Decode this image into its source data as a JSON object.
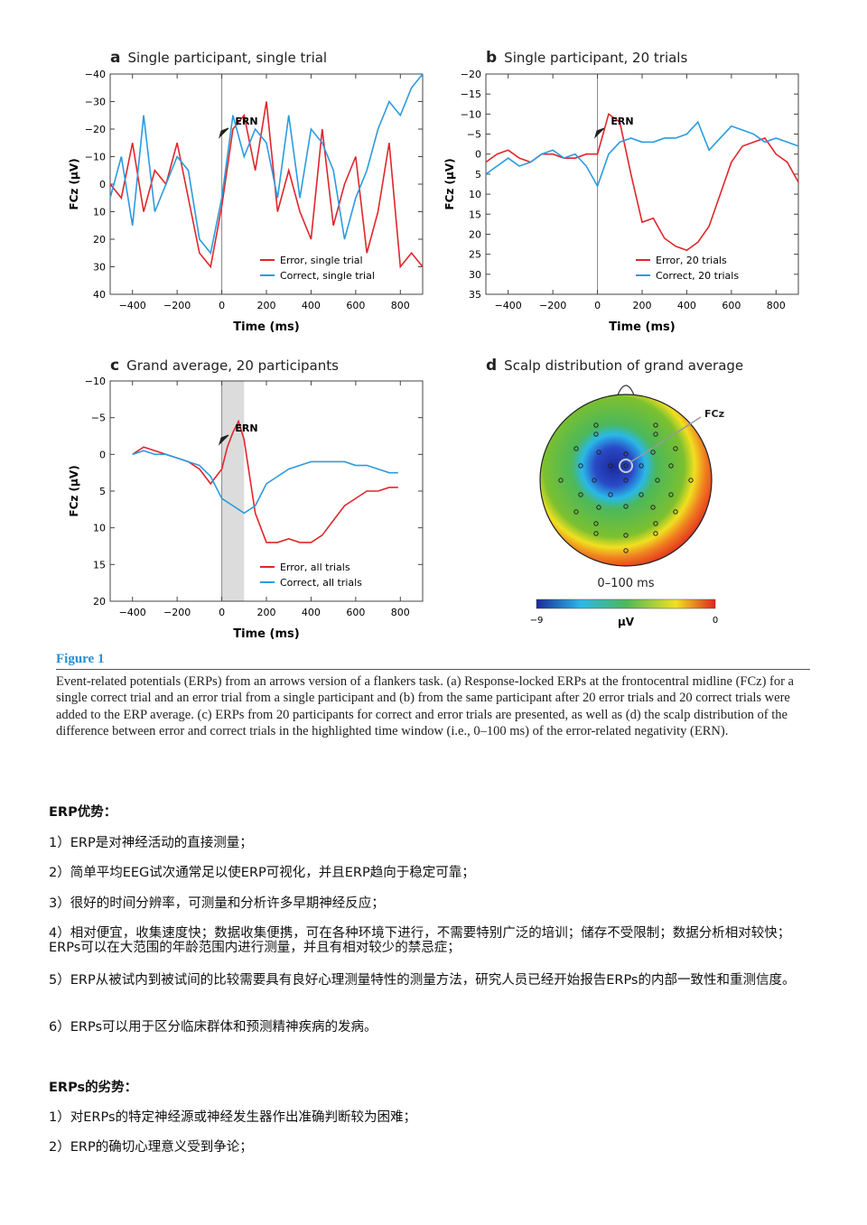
{
  "panels": {
    "a": {
      "letter": "a",
      "title": "Single participant, single trial",
      "ylabel": "FCz (μV)",
      "xlabel": "Time (ms)",
      "annot": "ERN",
      "legend": [
        "Error, single trial",
        "Correct, single trial"
      ]
    },
    "b": {
      "letter": "b",
      "title": "Single participant, 20 trials",
      "ylabel": "FCz (μV)",
      "xlabel": "Time (ms)",
      "annot": "ERN",
      "legend": [
        "Error, 20 trials",
        "Correct, 20 trials"
      ]
    },
    "c": {
      "letter": "c",
      "title": "Grand average, 20 participants",
      "ylabel": "FCz (μV)",
      "xlabel": "Time (ms)",
      "annot": "ERN",
      "legend": [
        "Error, all trials",
        "Correct, all trials"
      ]
    },
    "d": {
      "letter": "d",
      "title": "Scalp distribution of grand average",
      "electrode": "FCz",
      "window": "0–100 ms",
      "cb_min": "−9",
      "cb_max": "0",
      "cb_unit": "μV"
    }
  },
  "colors": {
    "error": "#e0262b",
    "correct": "#2b9be0",
    "highlight": "#dcdcdc",
    "caption_title": "#2a8fd0"
  },
  "chart_data": [
    {
      "type": "line",
      "panel": "a",
      "xlim": [
        -500,
        900
      ],
      "ylim": [
        40,
        -40
      ],
      "xticks": [
        -400,
        -200,
        0,
        200,
        400,
        600,
        800
      ],
      "yticks": [
        -40,
        -30,
        -20,
        -10,
        0,
        10,
        20,
        30,
        40
      ],
      "x": [
        -500,
        -450,
        -400,
        -350,
        -300,
        -250,
        -200,
        -150,
        -100,
        -50,
        0,
        50,
        100,
        150,
        200,
        250,
        300,
        350,
        400,
        450,
        500,
        550,
        600,
        650,
        700,
        750,
        800,
        850,
        900
      ],
      "series": [
        {
          "name": "Error, single trial",
          "values": [
            0,
            5,
            -15,
            10,
            -5,
            0,
            -15,
            5,
            25,
            30,
            8,
            -20,
            -25,
            -5,
            -30,
            10,
            -5,
            10,
            20,
            -20,
            15,
            0,
            -10,
            25,
            10,
            -15,
            30,
            25,
            30
          ]
        },
        {
          "name": "Correct, single trial",
          "values": [
            5,
            -10,
            15,
            -25,
            10,
            0,
            -10,
            -5,
            20,
            25,
            5,
            -25,
            -10,
            -20,
            -15,
            5,
            -25,
            5,
            -20,
            -15,
            -5,
            20,
            5,
            -5,
            -20,
            -30,
            -25,
            -35,
            -40
          ]
        }
      ]
    },
    {
      "type": "line",
      "panel": "b",
      "xlim": [
        -500,
        900
      ],
      "ylim": [
        35,
        -20
      ],
      "xticks": [
        -400,
        -200,
        0,
        200,
        400,
        600,
        800
      ],
      "yticks": [
        -20,
        -15,
        -10,
        -5,
        0,
        5,
        10,
        15,
        20,
        25,
        30,
        35
      ],
      "x": [
        -500,
        -450,
        -400,
        -350,
        -300,
        -250,
        -200,
        -150,
        -100,
        -50,
        0,
        50,
        100,
        150,
        200,
        250,
        300,
        350,
        400,
        450,
        500,
        550,
        600,
        650,
        700,
        750,
        800,
        850,
        900
      ],
      "series": [
        {
          "name": "Error, 20 trials",
          "values": [
            2,
            0,
            -1,
            1,
            2,
            0,
            0,
            1,
            1,
            0,
            0,
            -10,
            -8,
            5,
            17,
            16,
            21,
            23,
            24,
            22,
            18,
            10,
            2,
            -2,
            -3,
            -4,
            0,
            2,
            7
          ]
        },
        {
          "name": "Correct, 20 trials",
          "values": [
            5,
            3,
            1,
            3,
            2,
            0,
            -1,
            1,
            0,
            3,
            8,
            0,
            -3,
            -4,
            -3,
            -3,
            -4,
            -4,
            -5,
            -8,
            -1,
            -4,
            -7,
            -6,
            -5,
            -3,
            -4,
            -3,
            -2
          ]
        }
      ]
    },
    {
      "type": "line",
      "panel": "c",
      "xlim": [
        -500,
        900
      ],
      "ylim": [
        20,
        -10
      ],
      "xticks": [
        -400,
        -200,
        0,
        200,
        400,
        600,
        800
      ],
      "yticks": [
        -10,
        -5,
        0,
        5,
        10,
        15,
        20
      ],
      "highlight": [
        0,
        100
      ],
      "x": [
        -400,
        -350,
        -300,
        -250,
        -200,
        -150,
        -100,
        -50,
        0,
        25,
        50,
        75,
        100,
        150,
        200,
        250,
        300,
        350,
        400,
        450,
        500,
        550,
        600,
        650,
        700,
        750,
        790
      ],
      "series": [
        {
          "name": "Error, all trials",
          "values": [
            0,
            -1,
            -0.5,
            0,
            0.5,
            1,
            2,
            4,
            2,
            -1,
            -3,
            -4.5,
            -2,
            8,
            12,
            12,
            11.5,
            12,
            12,
            11,
            9,
            7,
            6,
            5,
            5,
            4.5,
            4.5
          ]
        },
        {
          "name": "Correct, all trials",
          "values": [
            0,
            -0.5,
            0,
            0,
            0.5,
            1,
            1.5,
            3,
            6,
            6.5,
            7,
            7.5,
            8,
            7,
            4,
            3,
            2,
            1.5,
            1,
            1,
            1,
            1,
            1.5,
            1.5,
            2,
            2.5,
            2.5
          ]
        }
      ]
    }
  ],
  "caption": {
    "label": "Figure 1",
    "text": "Event-related potentials (ERPs) from an arrows version of a flankers task. (a) Response-locked ERPs at the frontocentral midline (FCz) for a single correct trial and an error trial from a single participant and (b) from the same participant after 20 error trials and 20 correct trials were added to the ERP average. (c) ERPs from 20 participants for correct and error trials are presented, as well as (d) the scalp distribution of the difference between error and correct trials in the highlighted time window (i.e., 0–100 ms) of the error-related negativity (ERN)."
  },
  "advantages": {
    "heading": "ERP优势：",
    "items": [
      "1）ERP是对神经活动的直接测量；",
      "2）简单平均EEG试次通常足以使ERP可视化，并且ERP趋向于稳定可靠；",
      "3）很好的时间分辨率，可测量和分析许多早期神经反应；",
      "4）相对便宜，收集速度快；数据收集便携，可在各种环境下进行，不需要特别广泛的培训；储存不受限制；数据分析相对较快；ERPs可以在大范围的年龄范围内进行测量，并且有相对较少的禁忌症；",
      "5）ERP从被试内到被试间的比较需要具有良好心理测量特性的测量方法，研究人员已经开始报告ERPs的内部一致性和重测信度。",
      "6）ERPs可以用于区分临床群体和预测精神疾病的发病。"
    ]
  },
  "disadvantages": {
    "heading": "ERPs的劣势：",
    "items": [
      "1）对ERPs的特定神经源或神经发生器作出准确判断较为困难；",
      "2）ERP的确切心理意义受到争论；"
    ]
  }
}
